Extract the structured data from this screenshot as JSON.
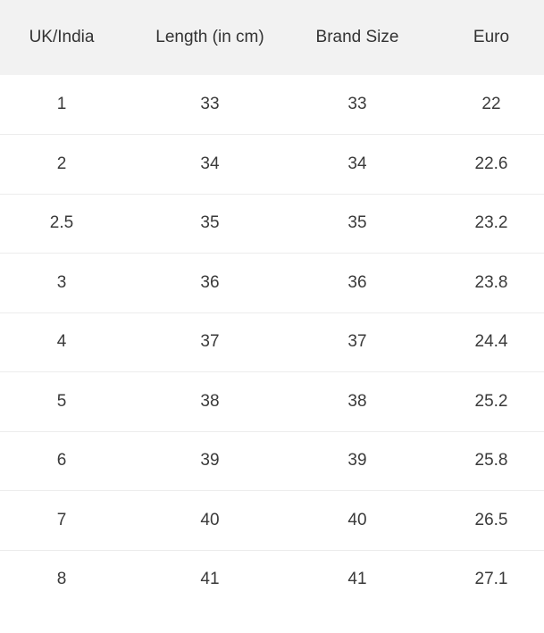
{
  "table": {
    "header": [
      "UK/India",
      "Length (in cm)",
      "Brand Size",
      "Euro"
    ],
    "rows": [
      [
        "1",
        "33",
        "33",
        "22"
      ],
      [
        "2",
        "34",
        "34",
        "22.6"
      ],
      [
        "2.5",
        "35",
        "35",
        "23.2"
      ],
      [
        "3",
        "36",
        "36",
        "23.8"
      ],
      [
        "4",
        "37",
        "37",
        "24.4"
      ],
      [
        "5",
        "38",
        "38",
        "25.2"
      ],
      [
        "6",
        "39",
        "39",
        "25.8"
      ],
      [
        "7",
        "40",
        "40",
        "26.5"
      ],
      [
        "8",
        "41",
        "41",
        "27.1"
      ]
    ]
  }
}
